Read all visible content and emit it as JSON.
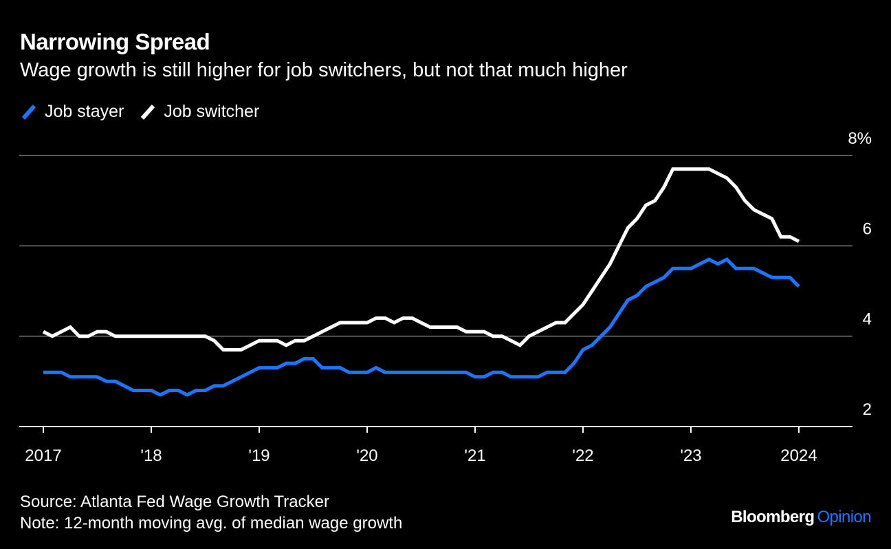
{
  "header": {
    "title": "Narrowing Spread",
    "subtitle": "Wage growth is still higher for job switchers, but not that much higher"
  },
  "footer": {
    "source": "Source: Atlanta Fed Wage Growth Tracker",
    "note": "Note: 12-month moving avg. of median wage growth"
  },
  "brand": {
    "name": "Bloomberg",
    "section": "Opinion",
    "name_color": "#ffffff",
    "section_color": "#1a76ff"
  },
  "chart_data": {
    "type": "line",
    "title": "Narrowing Spread",
    "subtitle": "Wage growth is still higher for job switchers, but not that much higher",
    "x_axis": {
      "type": "date",
      "range": [
        "2017-01",
        "2024-01"
      ],
      "ticks": [
        {
          "value": "2017-01",
          "label": "2017"
        },
        {
          "value": "2018-01",
          "label": "'18"
        },
        {
          "value": "2019-01",
          "label": "'19"
        },
        {
          "value": "2020-01",
          "label": "'20"
        },
        {
          "value": "2021-01",
          "label": "'21"
        },
        {
          "value": "2022-01",
          "label": "'22"
        },
        {
          "value": "2023-01",
          "label": "'23"
        },
        {
          "value": "2024-01",
          "label": "2024"
        }
      ]
    },
    "y_axis": {
      "range": [
        2,
        8
      ],
      "ticks": [
        {
          "value": 2,
          "label": "2"
        },
        {
          "value": 4,
          "label": "4"
        },
        {
          "value": 6,
          "label": "6"
        },
        {
          "value": 8,
          "label": "8%"
        }
      ],
      "side": "right",
      "gridlines": true
    },
    "legend": {
      "position": "top-left"
    },
    "x": [
      "2017-01",
      "2017-02",
      "2017-03",
      "2017-04",
      "2017-05",
      "2017-06",
      "2017-07",
      "2017-08",
      "2017-09",
      "2017-10",
      "2017-11",
      "2017-12",
      "2018-01",
      "2018-02",
      "2018-03",
      "2018-04",
      "2018-05",
      "2018-06",
      "2018-07",
      "2018-08",
      "2018-09",
      "2018-10",
      "2018-11",
      "2018-12",
      "2019-01",
      "2019-02",
      "2019-03",
      "2019-04",
      "2019-05",
      "2019-06",
      "2019-07",
      "2019-08",
      "2019-09",
      "2019-10",
      "2019-11",
      "2019-12",
      "2020-01",
      "2020-02",
      "2020-03",
      "2020-04",
      "2020-05",
      "2020-06",
      "2020-07",
      "2020-08",
      "2020-09",
      "2020-10",
      "2020-11",
      "2020-12",
      "2021-01",
      "2021-02",
      "2021-03",
      "2021-04",
      "2021-05",
      "2021-06",
      "2021-07",
      "2021-08",
      "2021-09",
      "2021-10",
      "2021-11",
      "2021-12",
      "2022-01",
      "2022-02",
      "2022-03",
      "2022-04",
      "2022-05",
      "2022-06",
      "2022-07",
      "2022-08",
      "2022-09",
      "2022-10",
      "2022-11",
      "2022-12",
      "2023-01",
      "2023-02",
      "2023-03",
      "2023-04",
      "2023-05",
      "2023-06",
      "2023-07",
      "2023-08",
      "2023-09",
      "2023-10",
      "2023-11",
      "2023-12",
      "2024-01"
    ],
    "series": [
      {
        "name": "Job stayer",
        "color": "#1a76ff",
        "values": [
          3.2,
          3.2,
          3.2,
          3.1,
          3.1,
          3.1,
          3.1,
          3.0,
          3.0,
          2.9,
          2.8,
          2.8,
          2.8,
          2.7,
          2.8,
          2.8,
          2.7,
          2.8,
          2.8,
          2.9,
          2.9,
          3.0,
          3.1,
          3.2,
          3.3,
          3.3,
          3.3,
          3.4,
          3.4,
          3.5,
          3.5,
          3.3,
          3.3,
          3.3,
          3.2,
          3.2,
          3.2,
          3.3,
          3.2,
          3.2,
          3.2,
          3.2,
          3.2,
          3.2,
          3.2,
          3.2,
          3.2,
          3.2,
          3.1,
          3.1,
          3.2,
          3.2,
          3.1,
          3.1,
          3.1,
          3.1,
          3.2,
          3.2,
          3.2,
          3.4,
          3.7,
          3.8,
          4.0,
          4.2,
          4.5,
          4.8,
          4.9,
          5.1,
          5.2,
          5.3,
          5.5,
          5.5,
          5.5,
          5.6,
          5.7,
          5.6,
          5.7,
          5.5,
          5.5,
          5.5,
          5.4,
          5.3,
          5.3,
          5.3,
          5.1
        ]
      },
      {
        "name": "Job switcher",
        "color": "#ffffff",
        "values": [
          4.1,
          4.0,
          4.1,
          4.2,
          4.0,
          4.0,
          4.1,
          4.1,
          4.0,
          4.0,
          4.0,
          4.0,
          4.0,
          4.0,
          4.0,
          4.0,
          4.0,
          4.0,
          4.0,
          3.9,
          3.7,
          3.7,
          3.7,
          3.8,
          3.9,
          3.9,
          3.9,
          3.8,
          3.9,
          3.9,
          4.0,
          4.1,
          4.2,
          4.3,
          4.3,
          4.3,
          4.3,
          4.4,
          4.4,
          4.3,
          4.4,
          4.4,
          4.3,
          4.2,
          4.2,
          4.2,
          4.2,
          4.1,
          4.1,
          4.1,
          4.0,
          4.0,
          3.9,
          3.8,
          4.0,
          4.1,
          4.2,
          4.3,
          4.3,
          4.5,
          4.7,
          5.0,
          5.3,
          5.6,
          6.0,
          6.4,
          6.6,
          6.9,
          7.0,
          7.3,
          7.7,
          7.7,
          7.7,
          7.7,
          7.7,
          7.6,
          7.5,
          7.3,
          7.0,
          6.8,
          6.7,
          6.6,
          6.2,
          6.2,
          6.1
        ]
      }
    ]
  }
}
